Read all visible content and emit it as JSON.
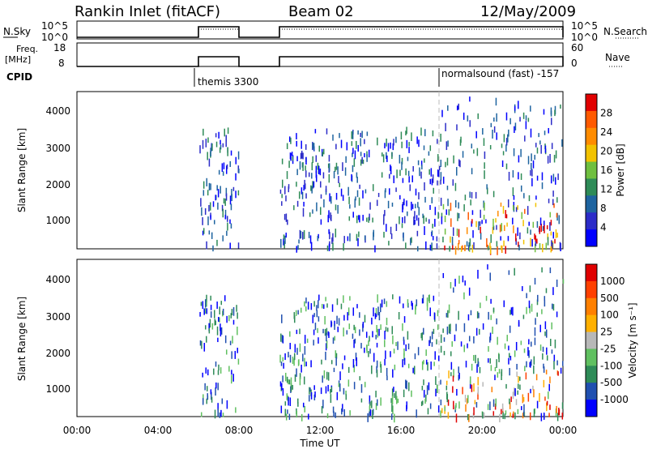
{
  "header": {
    "station": "Rankin Inlet (fitACF)",
    "beam": "Beam 02",
    "date": "12/May/2009"
  },
  "summary_labels": {
    "nsky": "N.Sky",
    "nsky_ticks": [
      "10^5",
      "10^0"
    ],
    "freq": "Freq.",
    "freq_unit": "[MHz]",
    "freq_ticks": [
      "18",
      "8"
    ],
    "cpid": "CPID",
    "nsearch": "N.Search",
    "nsearch_ticks": [
      "10^5",
      "10^0"
    ],
    "nave": "Nave",
    "nave_ticks": [
      "60",
      "0"
    ]
  },
  "cpid_labels": [
    {
      "text": "themis 3300",
      "start_hour": 6.0
    },
    {
      "text": "normalsound (fast) -157",
      "start_hour": 18.0
    }
  ],
  "colors": {
    "power": [
      "#0000ff",
      "#2c2cc8",
      "#1e64a0",
      "#2e8b57",
      "#6fbf3f",
      "#f2c200",
      "#ff8c00",
      "#ff5a00",
      "#e10000"
    ],
    "velocity": [
      "#0000ff",
      "#2050b0",
      "#2e8b57",
      "#60c060",
      "#b8b8b8",
      "#ffb000",
      "#ff8000",
      "#ff4000",
      "#e00000"
    ],
    "gray_dash": "#bbbbbb"
  },
  "chart_data": [
    {
      "type": "heatmap",
      "name": "power-panel",
      "xlabel": "",
      "ylabel": "Slant Range [km]",
      "xlim": [
        0,
        24
      ],
      "ylim": [
        180,
        4550
      ],
      "yticks": [
        "1000",
        "2000",
        "3000",
        "4000"
      ],
      "colorbar": {
        "label": "Power [dB]",
        "ticks": [
          "4",
          "8",
          "12",
          "16",
          "20",
          "24",
          "28"
        ]
      },
      "data_windows_hours": [
        [
          6.0,
          8.0
        ],
        [
          10.0,
          24.0
        ]
      ]
    },
    {
      "type": "heatmap",
      "name": "velocity-panel",
      "xlabel": "Time UT",
      "ylabel": "Slant Range [km]",
      "xlim": [
        0,
        24
      ],
      "ylim": [
        180,
        4550
      ],
      "yticks": [
        "1000",
        "2000",
        "3000",
        "4000"
      ],
      "xticks": [
        "00:00",
        "04:00",
        "08:00",
        "12:00",
        "16:00",
        "20:00",
        "00:00"
      ],
      "colorbar": {
        "label": "Velocity [m s⁻¹]",
        "ticks": [
          "1000",
          "500",
          "100",
          "25",
          "-25",
          "-100",
          "-500",
          "-1000"
        ]
      },
      "data_windows_hours": [
        [
          6.0,
          8.0
        ],
        [
          10.0,
          24.0
        ]
      ]
    }
  ]
}
